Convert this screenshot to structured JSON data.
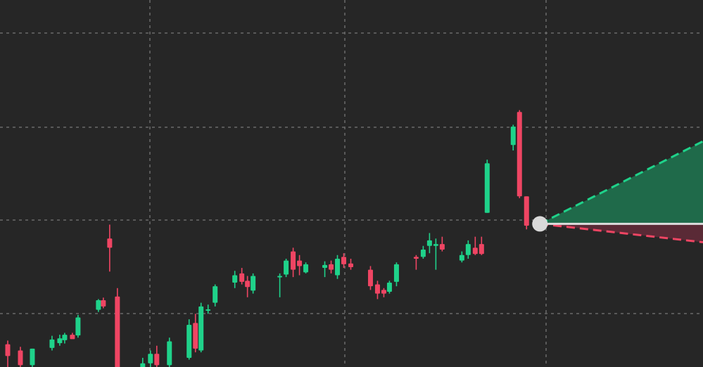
{
  "colors": {
    "background": "#262626",
    "grid": "#6a6a6a",
    "up": "#1fd28a",
    "down": "#ef4563",
    "current_marker": "#d9d9d9",
    "forecast_up": "#1fd28a",
    "forecast_down": "#ef4563",
    "forecast_up_fill": "#1f6a4a",
    "forecast_down_fill": "#5a2a36",
    "forecast_mid": "#dcdcdc"
  },
  "chart_data": {
    "type": "candlestick",
    "grid": true,
    "ylim": [
      0,
      100
    ],
    "xlim": [
      0,
      100
    ],
    "candles": [
      {
        "x": 1.1,
        "open": 3.0,
        "high": 7.2,
        "low": -2.0,
        "close": 6.2,
        "dir": "down"
      },
      {
        "x": 2.9,
        "open": 4.5,
        "high": 5.5,
        "low": -2.0,
        "close": 0.5,
        "dir": "down"
      },
      {
        "x": 4.6,
        "open": 0.5,
        "high": 5.0,
        "low": -2.0,
        "close": 5.0,
        "dir": "up"
      },
      {
        "x": 7.4,
        "open": 5.2,
        "high": 8.5,
        "low": 4.5,
        "close": 7.5,
        "dir": "up"
      },
      {
        "x": 8.5,
        "open": 6.5,
        "high": 8.8,
        "low": 5.8,
        "close": 7.8,
        "dir": "up"
      },
      {
        "x": 9.2,
        "open": 7.3,
        "high": 9.3,
        "low": 6.4,
        "close": 8.8,
        "dir": "up"
      },
      {
        "x": 10.3,
        "open": 8.8,
        "high": 9.3,
        "low": 7.8,
        "close": 7.6,
        "dir": "down"
      },
      {
        "x": 11.1,
        "open": 8.6,
        "high": 14.2,
        "low": 8.0,
        "close": 13.5,
        "dir": "up"
      },
      {
        "x": 14.0,
        "open": 15.6,
        "high": 18.5,
        "low": 15.0,
        "close": 18.2,
        "dir": "up"
      },
      {
        "x": 14.7,
        "open": 18.2,
        "high": 18.9,
        "low": 16.0,
        "close": 16.5,
        "dir": "down"
      },
      {
        "x": 15.6,
        "open": 35.0,
        "high": 38.8,
        "low": 26.0,
        "close": 32.5,
        "dir": "down"
      },
      {
        "x": 16.7,
        "open": 19.2,
        "high": 21.5,
        "low": -2.0,
        "close": -2.0,
        "dir": "down"
      },
      {
        "x": 20.3,
        "open": -2.0,
        "high": 2.5,
        "low": -2.0,
        "close": 1.0,
        "dir": "up"
      },
      {
        "x": 21.4,
        "open": 1.0,
        "high": 4.5,
        "low": -1.0,
        "close": 3.6,
        "dir": "up"
      },
      {
        "x": 22.3,
        "open": 3.6,
        "high": 5.8,
        "low": -2.0,
        "close": 0.5,
        "dir": "down"
      },
      {
        "x": 24.1,
        "open": 0.5,
        "high": 8.0,
        "low": -2.0,
        "close": 7.0,
        "dir": "up"
      },
      {
        "x": 26.9,
        "open": 2.5,
        "high": 13.0,
        "low": 2.0,
        "close": 11.5,
        "dir": "up"
      },
      {
        "x": 27.8,
        "open": 12.0,
        "high": 14.5,
        "low": 4.0,
        "close": 5.0,
        "dir": "down"
      },
      {
        "x": 28.6,
        "open": 4.5,
        "high": 17.5,
        "low": 4.0,
        "close": 16.5,
        "dir": "up"
      },
      {
        "x": 29.6,
        "open": 15.5,
        "high": 17.0,
        "low": 14.5,
        "close": 15.7,
        "dir": "up"
      },
      {
        "x": 30.6,
        "open": 17.5,
        "high": 22.5,
        "low": 16.5,
        "close": 22.0,
        "dir": "up"
      },
      {
        "x": 33.4,
        "open": 23.0,
        "high": 26.2,
        "low": 21.5,
        "close": 25.0,
        "dir": "up"
      },
      {
        "x": 34.4,
        "open": 25.5,
        "high": 27.0,
        "low": 22.5,
        "close": 23.2,
        "dir": "down"
      },
      {
        "x": 35.2,
        "open": 23.5,
        "high": 24.8,
        "low": 19.0,
        "close": 21.8,
        "dir": "down"
      },
      {
        "x": 36.0,
        "open": 20.8,
        "high": 25.5,
        "low": 20.0,
        "close": 24.8,
        "dir": "up"
      },
      {
        "x": 39.8,
        "open": 24.5,
        "high": 25.5,
        "low": 19.0,
        "close": 24.8,
        "dir": "up"
      },
      {
        "x": 40.7,
        "open": 25.2,
        "high": 29.5,
        "low": 24.5,
        "close": 29.0,
        "dir": "up"
      },
      {
        "x": 41.7,
        "open": 31.5,
        "high": 32.5,
        "low": 24.5,
        "close": 26.5,
        "dir": "down"
      },
      {
        "x": 42.6,
        "open": 29.0,
        "high": 30.5,
        "low": 25.0,
        "close": 27.5,
        "dir": "down"
      },
      {
        "x": 43.5,
        "open": 25.8,
        "high": 28.5,
        "low": 25.5,
        "close": 28.0,
        "dir": "up"
      },
      {
        "x": 46.2,
        "open": 27.0,
        "high": 28.8,
        "low": 24.5,
        "close": 27.8,
        "dir": "up"
      },
      {
        "x": 47.1,
        "open": 28.0,
        "high": 29.0,
        "low": 25.5,
        "close": 26.5,
        "dir": "down"
      },
      {
        "x": 48.0,
        "open": 25.0,
        "high": 30.5,
        "low": 24.0,
        "close": 29.5,
        "dir": "up"
      },
      {
        "x": 48.9,
        "open": 30.0,
        "high": 31.0,
        "low": 27.0,
        "close": 28.0,
        "dir": "down"
      },
      {
        "x": 49.9,
        "open": 28.2,
        "high": 29.5,
        "low": 26.5,
        "close": 27.2,
        "dir": "down"
      },
      {
        "x": 52.7,
        "open": 26.5,
        "high": 27.5,
        "low": 21.0,
        "close": 22.0,
        "dir": "down"
      },
      {
        "x": 53.7,
        "open": 22.5,
        "high": 23.5,
        "low": 18.5,
        "close": 20.0,
        "dir": "down"
      },
      {
        "x": 54.6,
        "open": 20.0,
        "high": 21.5,
        "low": 19.0,
        "close": 21.0,
        "dir": "down"
      },
      {
        "x": 55.4,
        "open": 20.5,
        "high": 23.5,
        "low": 20.0,
        "close": 23.0,
        "dir": "up"
      },
      {
        "x": 56.4,
        "open": 23.2,
        "high": 28.5,
        "low": 22.0,
        "close": 28.0,
        "dir": "up"
      },
      {
        "x": 59.2,
        "open": 29.5,
        "high": 30.5,
        "low": 26.5,
        "close": 30.0,
        "dir": "down"
      },
      {
        "x": 60.2,
        "open": 30.0,
        "high": 33.0,
        "low": 29.5,
        "close": 32.0,
        "dir": "up"
      },
      {
        "x": 61.1,
        "open": 33.0,
        "high": 36.5,
        "low": 31.0,
        "close": 34.5,
        "dir": "up"
      },
      {
        "x": 62.0,
        "open": 33.5,
        "high": 35.0,
        "low": 26.5,
        "close": 33.0,
        "dir": "up"
      },
      {
        "x": 62.9,
        "open": 33.5,
        "high": 35.5,
        "low": 31.5,
        "close": 32.0,
        "dir": "down"
      },
      {
        "x": 65.7,
        "open": 29.0,
        "high": 31.5,
        "low": 28.5,
        "close": 30.5,
        "dir": "up"
      },
      {
        "x": 66.6,
        "open": 30.5,
        "high": 34.5,
        "low": 29.5,
        "close": 33.5,
        "dir": "up"
      },
      {
        "x": 67.6,
        "open": 32.5,
        "high": 35.5,
        "low": 30.5,
        "close": 30.8,
        "dir": "down"
      },
      {
        "x": 68.5,
        "open": 33.5,
        "high": 35.5,
        "low": 30.5,
        "close": 30.8,
        "dir": "down"
      },
      {
        "x": 69.3,
        "open": 42.0,
        "high": 56.5,
        "low": 42.0,
        "close": 55.5,
        "dir": "up"
      },
      {
        "x": 73.0,
        "open": 60.5,
        "high": 66.0,
        "low": 59.0,
        "close": 65.5,
        "dir": "up"
      },
      {
        "x": 73.9,
        "open": 69.5,
        "high": 70.0,
        "low": 46.0,
        "close": 46.5,
        "dir": "down"
      },
      {
        "x": 74.9,
        "open": 46.5,
        "high": 46.5,
        "low": 37.5,
        "close": 38.5,
        "dir": "down"
      }
    ],
    "current_point": {
      "x": 76.8,
      "y": 39.0
    },
    "forecast": {
      "x_end": 100,
      "upper_end": 61.5,
      "mid_end": 39.0,
      "lower_end": 34.0
    }
  }
}
